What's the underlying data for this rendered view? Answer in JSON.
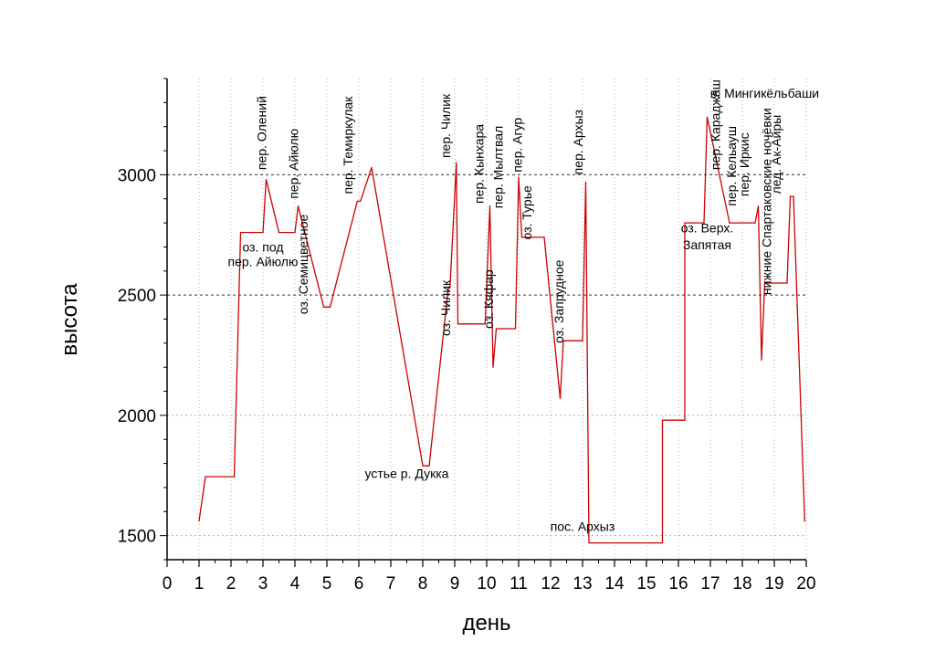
{
  "chart_data": {
    "type": "line",
    "xlabel": "день",
    "ylabel": "высота",
    "xlim": [
      0,
      20
    ],
    "ylim": [
      1400,
      3400
    ],
    "xticks": [
      "0",
      "1",
      "2",
      "3",
      "4",
      "5",
      "6",
      "7",
      "8",
      "9",
      "10",
      "11",
      "12",
      "13",
      "14",
      "15",
      "16",
      "17",
      "18",
      "19",
      "20"
    ],
    "yticks": [
      "1500",
      "2000",
      "2500",
      "3000"
    ],
    "grid": {
      "vertical": true,
      "horizontal": [
        1500,
        2000,
        2500,
        3000
      ]
    },
    "line_color": "#cc0000",
    "series": [
      {
        "x": [
          1.0,
          1.2,
          2.1,
          2.3,
          3.0,
          3.1,
          3.5,
          3.8,
          4.0,
          4.1,
          4.9,
          5.1,
          5.95,
          6.05,
          6.4,
          8.0,
          8.2,
          8.8,
          8.85,
          9.05,
          9.1,
          9.3,
          9.95,
          10.1,
          10.2,
          10.3,
          10.9,
          11.0,
          11.1,
          11.2,
          11.8,
          12.3,
          12.4,
          13.0,
          13.1,
          13.2,
          13.5,
          15.5,
          15.5,
          16.2,
          16.2,
          16.8,
          16.9,
          17.6,
          17.7,
          17.7,
          18.4,
          18.5,
          18.6,
          18.6,
          18.7,
          18.8,
          19.4,
          19.5,
          19.6,
          19.95
        ],
        "y": [
          1560,
          1745,
          1745,
          2760,
          2760,
          2980,
          2760,
          2760,
          2760,
          2870,
          2450,
          2450,
          2890,
          2890,
          3030,
          1790,
          1790,
          2530,
          2530,
          3050,
          2380,
          2380,
          2380,
          2870,
          2200,
          2360,
          2360,
          2990,
          2740,
          2740,
          2740,
          2070,
          2310,
          2310,
          2970,
          1470,
          1470,
          1470,
          1980,
          1980,
          2800,
          2800,
          3240,
          2800,
          2800,
          2800,
          2800,
          2870,
          2230,
          2230,
          2550,
          2550,
          2550,
          2910,
          2910,
          1560
        ]
      }
    ],
    "annotations": [
      {
        "text": "пер. Олений",
        "x": 3.1,
        "y": 3020,
        "rotate": true
      },
      {
        "text": "пер. Айюлю",
        "x": 4.1,
        "y": 2900,
        "rotate": true
      },
      {
        "text": "оз. под",
        "x": 3.0,
        "y": 2680,
        "rotate": false
      },
      {
        "text": "пер. Айюлю",
        "x": 3.0,
        "y": 2620,
        "rotate": false
      },
      {
        "text": "оз. Семицветное",
        "x": 4.4,
        "y": 2420,
        "rotate": true
      },
      {
        "text": "пер. Темиркулак",
        "x": 5.8,
        "y": 2920,
        "rotate": true
      },
      {
        "text": "устье р. Дукка",
        "x": 7.5,
        "y": 1740,
        "rotate": false
      },
      {
        "text": "пер. Чилик",
        "x": 8.85,
        "y": 3070,
        "rotate": true
      },
      {
        "text": "оз. Чилик",
        "x": 8.85,
        "y": 2330,
        "rotate": true
      },
      {
        "text": "пер. Кынхара",
        "x": 9.9,
        "y": 2880,
        "rotate": true
      },
      {
        "text": "оз. Кяфар",
        "x": 10.2,
        "y": 2360,
        "rotate": true
      },
      {
        "text": "пер. Мылтвал",
        "x": 10.5,
        "y": 2860,
        "rotate": true
      },
      {
        "text": "пер. Агур",
        "x": 11.1,
        "y": 3010,
        "rotate": true
      },
      {
        "text": "оз. Турье",
        "x": 11.4,
        "y": 2730,
        "rotate": true
      },
      {
        "text": "оз. Запрудное",
        "x": 12.4,
        "y": 2300,
        "rotate": true
      },
      {
        "text": "пер. Архыз",
        "x": 13.0,
        "y": 3000,
        "rotate": true
      },
      {
        "text": "пос. Архыз",
        "x": 13.0,
        "y": 1520,
        "rotate": false
      },
      {
        "text": "пер. Караджаш",
        "x": 17.3,
        "y": 3020,
        "rotate": true
      },
      {
        "text": "в. Мингикёльбаши",
        "x": 18.7,
        "y": 3320,
        "rotate": false
      },
      {
        "text": "оз. Верх.",
        "x": 16.9,
        "y": 2760,
        "rotate": false
      },
      {
        "text": "Запятая",
        "x": 16.9,
        "y": 2690,
        "rotate": false
      },
      {
        "text": "пер. Кельауш",
        "x": 17.8,
        "y": 2870,
        "rotate": true
      },
      {
        "text": "пер. Иркис",
        "x": 18.2,
        "y": 2910,
        "rotate": true
      },
      {
        "text": "нижние Спартаковские ночёвки",
        "x": 18.9,
        "y": 2500,
        "rotate": true
      },
      {
        "text": "лед. Ак-Айры",
        "x": 19.2,
        "y": 2920,
        "rotate": true
      }
    ]
  }
}
